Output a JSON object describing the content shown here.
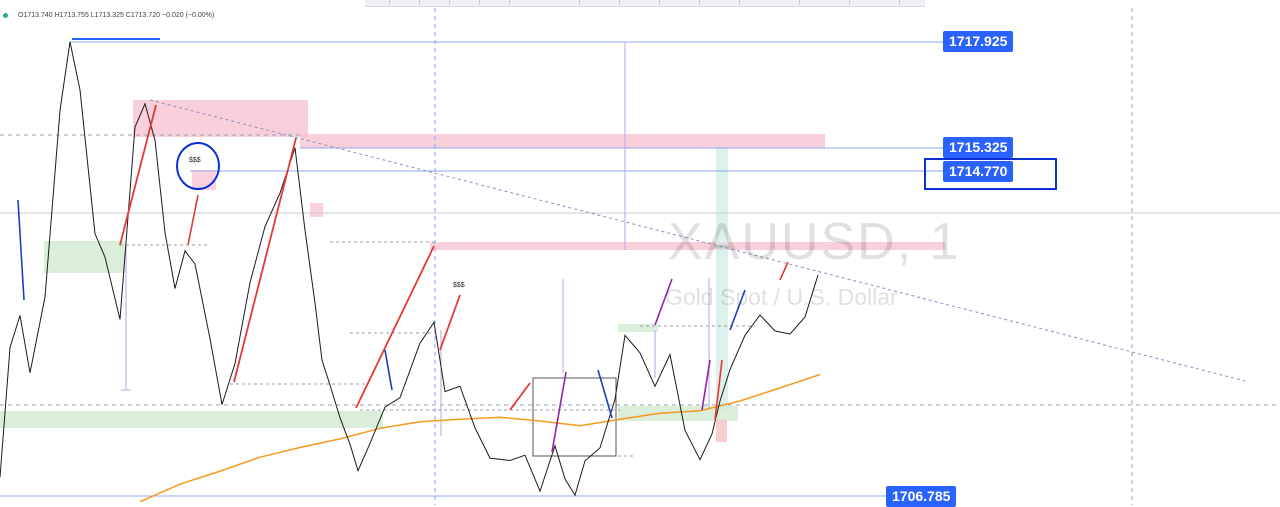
{
  "header": {
    "ohlc": "O1713.740 H1713.755 L1713.325 C1713.720 −0.020 (−0.00%)"
  },
  "watermark": {
    "symbol": "XAUUSD, 1",
    "description": "Gold Spot / U.S. Dollar"
  },
  "annotations": {
    "liquidity_1": "$$$",
    "liquidity_2": "$$$"
  },
  "price_tags": {
    "top": "1717.925",
    "upper": "1715.325",
    "marked": "1714.770",
    "bottom": "1706.785"
  },
  "colors": {
    "accent": "#2962ff",
    "supply_zone": "#f8bfd0",
    "demand_zone": "#d6ecd6",
    "moving_average": "#f59a1e",
    "red_leg": "#e53935",
    "blue_leg": "#1a3fbf",
    "purple_leg": "#8e24aa"
  },
  "chart_data": {
    "type": "line",
    "title": "XAUUSD, 1",
    "subtitle": "Gold Spot / U.S. Dollar",
    "xlabel": "",
    "ylabel": "",
    "ylim": [
      1706.6,
      1718.5
    ],
    "grid": true,
    "levels": [
      1717.925,
      1715.325,
      1714.77,
      1706.785
    ],
    "x": [
      0,
      10,
      20,
      30,
      45,
      60,
      70,
      80,
      95,
      105,
      120,
      135,
      145,
      155,
      165,
      175,
      185,
      195,
      210,
      222,
      235,
      250,
      265,
      280,
      295,
      305,
      315,
      322,
      330,
      340,
      350,
      358,
      370,
      385,
      400,
      420,
      434,
      445,
      460,
      475,
      490,
      510,
      525,
      540,
      555,
      565,
      575,
      585,
      600,
      615,
      625,
      640,
      655,
      670,
      685,
      700,
      712,
      720,
      730,
      745,
      760,
      775,
      790,
      805,
      818
    ],
    "values": [
      1707.25,
      1710.43,
      1711.22,
      1709.81,
      1711.67,
      1716.25,
      1717.93,
      1716.75,
      1713.22,
      1712.65,
      1711.12,
      1715.84,
      1716.41,
      1715.52,
      1713.25,
      1711.88,
      1712.8,
      1712.48,
      1710.65,
      1709.03,
      1710.04,
      1712.02,
      1713.4,
      1714.22,
      1715.33,
      1713.31,
      1711.52,
      1710.12,
      1709.51,
      1708.71,
      1708.06,
      1707.41,
      1708.08,
      1708.97,
      1709.2,
      1710.54,
      1711.05,
      1709.35,
      1709.48,
      1708.46,
      1707.72,
      1707.66,
      1707.79,
      1706.91,
      1708.02,
      1707.21,
      1706.81,
      1707.65,
      1707.97,
      1709.16,
      1710.73,
      1710.3,
      1709.48,
      1710.26,
      1708.4,
      1707.68,
      1708.31,
      1709.12,
      1709.89,
      1710.73,
      1711.23,
      1710.84,
      1710.76,
      1711.18,
      1712.21
    ],
    "moving_average": {
      "x": [
        140,
        180,
        220,
        260,
        300,
        340,
        380,
        420,
        460,
        500,
        540,
        580,
        620,
        660,
        700,
        740,
        780,
        820
      ],
      "values": [
        1706.65,
        1707.08,
        1707.4,
        1707.74,
        1707.98,
        1708.19,
        1708.45,
        1708.61,
        1708.67,
        1708.72,
        1708.63,
        1708.51,
        1708.67,
        1708.82,
        1708.88,
        1709.12,
        1709.44,
        1709.77
      ]
    }
  }
}
